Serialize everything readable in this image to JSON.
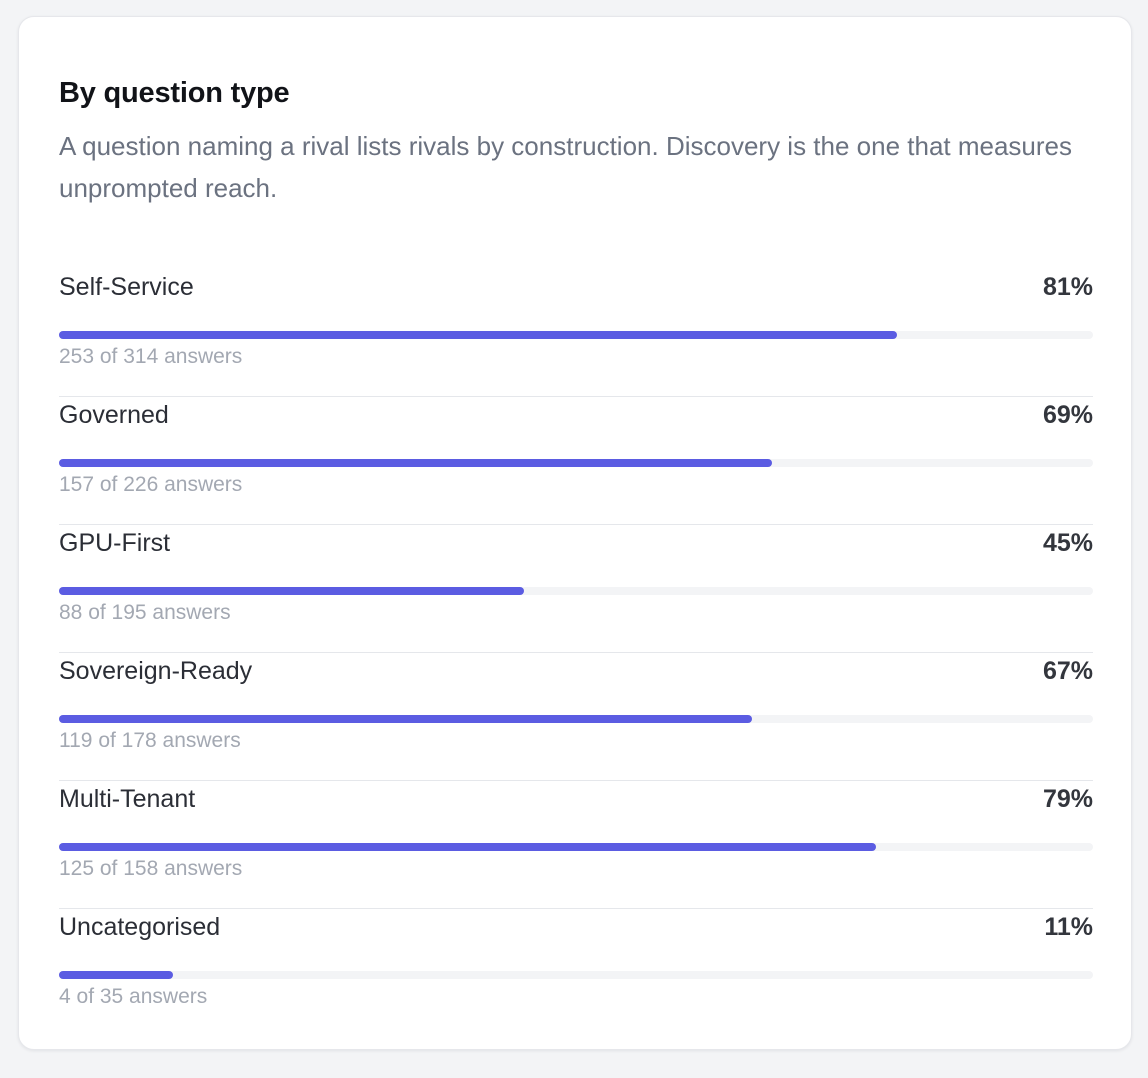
{
  "card": {
    "title": "By question type",
    "description": "A question naming a rival lists rivals by construction. Discovery is the one that measures unprompted reach."
  },
  "colors": {
    "bar_fill": "#5b5ce2",
    "bar_track": "#f3f4f6"
  },
  "rows": [
    {
      "label": "Self-Service",
      "percent_text": "81%",
      "fraction": 0.81,
      "sub": "253 of 314 answers"
    },
    {
      "label": "Governed",
      "percent_text": "69%",
      "fraction": 0.69,
      "sub": "157 of 226 answers"
    },
    {
      "label": "GPU-First",
      "percent_text": "45%",
      "fraction": 0.45,
      "sub": "88 of 195 answers"
    },
    {
      "label": "Sovereign-Ready",
      "percent_text": "67%",
      "fraction": 0.67,
      "sub": "119 of 178 answers"
    },
    {
      "label": "Multi-Tenant",
      "percent_text": "79%",
      "fraction": 0.79,
      "sub": "125 of 158 answers"
    },
    {
      "label": "Uncategorised",
      "percent_text": "11%",
      "fraction": 0.11,
      "sub": "4 of 35 answers"
    }
  ]
}
